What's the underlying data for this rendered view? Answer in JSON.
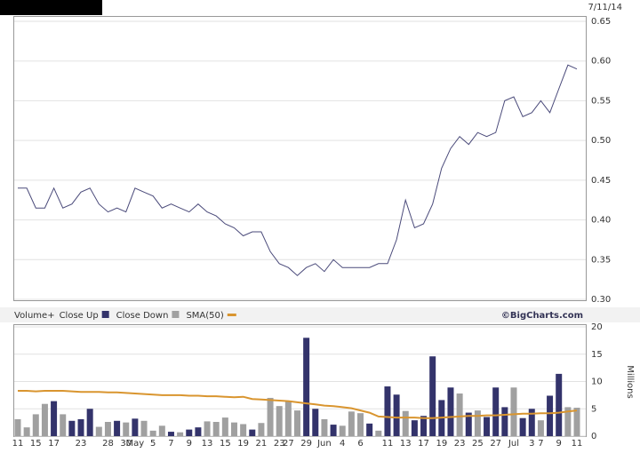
{
  "date": "7/11/14",
  "chart_data": [
    {
      "type": "line",
      "color": "#4a4a7a",
      "values": [
        0.44,
        0.44,
        0.415,
        0.415,
        0.44,
        0.415,
        0.42,
        0.435,
        0.44,
        0.42,
        0.41,
        0.415,
        0.41,
        0.44,
        0.435,
        0.43,
        0.415,
        0.42,
        0.415,
        0.41,
        0.42,
        0.41,
        0.405,
        0.395,
        0.39,
        0.38,
        0.385,
        0.385,
        0.36,
        0.345,
        0.34,
        0.33,
        0.34,
        0.345,
        0.335,
        0.35,
        0.34,
        0.34,
        0.34,
        0.34,
        0.345,
        0.345,
        0.375,
        0.425,
        0.39,
        0.395,
        0.42,
        0.465,
        0.49,
        0.505,
        0.495,
        0.51,
        0.505,
        0.51,
        0.55,
        0.555,
        0.53,
        0.535,
        0.55,
        0.535,
        0.565,
        0.595,
        0.59
      ],
      "ylim": [
        0.3,
        0.65
      ],
      "yticks": [
        {
          "value": 0.3,
          "label": "0.30"
        },
        0.35,
        {
          "value": 0.4,
          "label": "0.40"
        },
        0.45,
        {
          "value": 0.5,
          "label": "0.50"
        },
        0.55,
        {
          "value": 0.6,
          "label": "0.60"
        },
        0.65
      ],
      "grid": true
    },
    {
      "type": "bar",
      "legend_title": "Volume+",
      "ylabel": "Millions",
      "watermark": "©BigCharts.com",
      "categories": [
        "11",
        null,
        "15",
        null,
        "17",
        null,
        null,
        "23",
        null,
        null,
        "28",
        null,
        "30",
        "May",
        null,
        "5",
        null,
        "7",
        null,
        "9",
        null,
        "13",
        null,
        "15",
        null,
        "19",
        null,
        "21",
        null,
        "23",
        "27",
        null,
        "29",
        null,
        "Jun",
        null,
        "4",
        null,
        "6",
        null,
        null,
        "11",
        null,
        "13",
        null,
        "17",
        null,
        "19",
        null,
        "23",
        null,
        "25",
        null,
        "27",
        null,
        "Jul",
        null,
        "3",
        "7",
        null,
        "9",
        null,
        "11"
      ],
      "series": [
        {
          "name": "Close Up",
          "color": "#33336b",
          "values": [
            null,
            null,
            null,
            null,
            6.4,
            null,
            2.8,
            3.1,
            5,
            null,
            null,
            2.8,
            null,
            3.2,
            null,
            null,
            null,
            0.8,
            null,
            1.2,
            1.6,
            null,
            null,
            null,
            null,
            null,
            1.2,
            null,
            null,
            null,
            null,
            null,
            18,
            5,
            null,
            2.1,
            null,
            null,
            null,
            2.3,
            null,
            9.1,
            7.6,
            null,
            2.9,
            3.7,
            14.6,
            6.6,
            8.9,
            null,
            4.3,
            null,
            3.5,
            8.9,
            5.3,
            null,
            3.3,
            5,
            null,
            7.4,
            11.4,
            null,
            null
          ]
        },
        {
          "name": "Close Down",
          "color": "#a0a0a0",
          "values": [
            3.1,
            1.6,
            4,
            5.9,
            null,
            4,
            null,
            null,
            null,
            1.7,
            2.6,
            null,
            2.5,
            null,
            2.8,
            1,
            1.9,
            null,
            0.7,
            null,
            null,
            2.7,
            2.6,
            3.4,
            2.5,
            2.2,
            null,
            2.4,
            7,
            5.5,
            6.5,
            4.7,
            null,
            null,
            3.1,
            null,
            1.9,
            4.5,
            4.2,
            null,
            1,
            null,
            null,
            4.6,
            null,
            null,
            null,
            null,
            null,
            7.8,
            null,
            4.7,
            null,
            null,
            null,
            8.9,
            null,
            null,
            2.9,
            null,
            null,
            5.3,
            5.2
          ]
        },
        {
          "name": "SMA(50)",
          "type": "line",
          "color": "#d9952f",
          "values": [
            8.3,
            8.3,
            8.2,
            8.3,
            8.3,
            8.3,
            8.2,
            8.1,
            8.1,
            8.1,
            8.0,
            8.0,
            7.9,
            7.8,
            7.7,
            7.6,
            7.5,
            7.5,
            7.5,
            7.4,
            7.4,
            7.3,
            7.3,
            7.2,
            7.1,
            7.2,
            6.8,
            6.7,
            6.6,
            6.5,
            6.4,
            6.2,
            6.0,
            5.8,
            5.6,
            5.5,
            5.3,
            5.1,
            4.7,
            4.3,
            3.6,
            3.5,
            3.4,
            3.4,
            3.4,
            3.3,
            3.3,
            3.4,
            3.5,
            3.6,
            3.7,
            3.7,
            3.8,
            3.8,
            3.9,
            4.0,
            4.1,
            4.1,
            4.2,
            4.2,
            4.3,
            4.5,
            4.7
          ]
        }
      ],
      "ylim": [
        0,
        20
      ],
      "yticks": [
        0,
        5,
        10,
        15,
        20
      ],
      "grid": true
    }
  ]
}
